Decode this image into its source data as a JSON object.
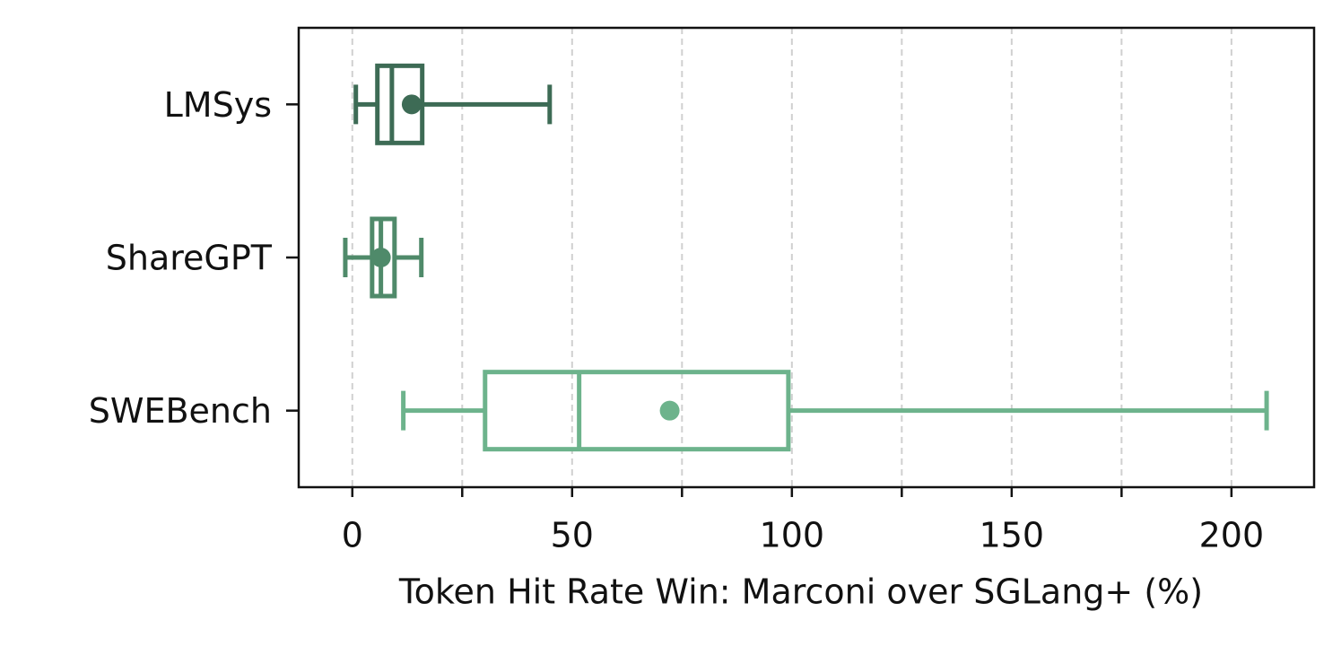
{
  "chart_data": {
    "type": "box",
    "orientation": "horizontal",
    "xlabel": "Token Hit Rate Win: Marconi over SGLang+ (%)",
    "xlim": [
      -12.2,
      218.8
    ],
    "xticks": [
      0,
      50,
      100,
      150,
      200
    ],
    "xminorticks": [
      25,
      75,
      125,
      175
    ],
    "grid": true,
    "series": [
      {
        "name": "LMSys",
        "color": "#3d6b55",
        "min": 0.8,
        "q1": 5.7,
        "median": 9.0,
        "q3": 15.9,
        "max": 44.9,
        "mean": 13.5
      },
      {
        "name": "ShareGPT",
        "color": "#4f8a6a",
        "min": -1.6,
        "q1": 4.5,
        "median": 6.5,
        "q3": 9.6,
        "max": 15.7,
        "mean": 6.5
      },
      {
        "name": "SWEBench",
        "color": "#6db38c",
        "min": 11.6,
        "q1": 30.2,
        "median": 51.6,
        "q3": 99.2,
        "max": 208.0,
        "mean": 72.2
      }
    ]
  }
}
